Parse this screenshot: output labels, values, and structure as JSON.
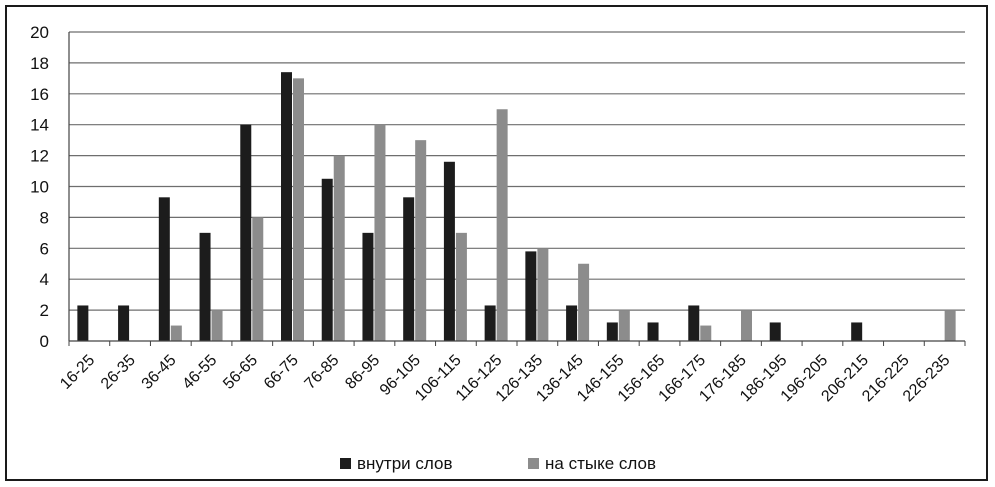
{
  "chart_data": {
    "type": "bar",
    "title": "",
    "xlabel": "",
    "ylabel": "",
    "ylim": [
      0,
      20
    ],
    "yticks": [
      0,
      2,
      4,
      6,
      8,
      10,
      12,
      14,
      16,
      18,
      20
    ],
    "grid": true,
    "legend_position": "bottom",
    "categories": [
      "16-25",
      "26-35",
      "36-45",
      "46-55",
      "56-65",
      "66-75",
      "76-85",
      "86-95",
      "96-105",
      "106-115",
      "116-125",
      "126-135",
      "136-145",
      "146-155",
      "156-165",
      "166-175",
      "176-185",
      "186-195",
      "196-205",
      "206-215",
      "216-225",
      "226-235"
    ],
    "series": [
      {
        "name": "внутри слов",
        "color": "#1c1c1c",
        "values": [
          2.3,
          2.3,
          9.3,
          7,
          14,
          17.4,
          10.5,
          7,
          9.3,
          11.6,
          2.3,
          5.8,
          2.3,
          1.2,
          1.2,
          2.3,
          0,
          1.2,
          0,
          1.2,
          0,
          0
        ]
      },
      {
        "name": "на стыке слов",
        "color": "#8c8c8c",
        "values": [
          0,
          0,
          1,
          2,
          8,
          17,
          12,
          14,
          13,
          7,
          15,
          6,
          5,
          2,
          0,
          1,
          2,
          0,
          0,
          0,
          0,
          2
        ]
      }
    ]
  }
}
